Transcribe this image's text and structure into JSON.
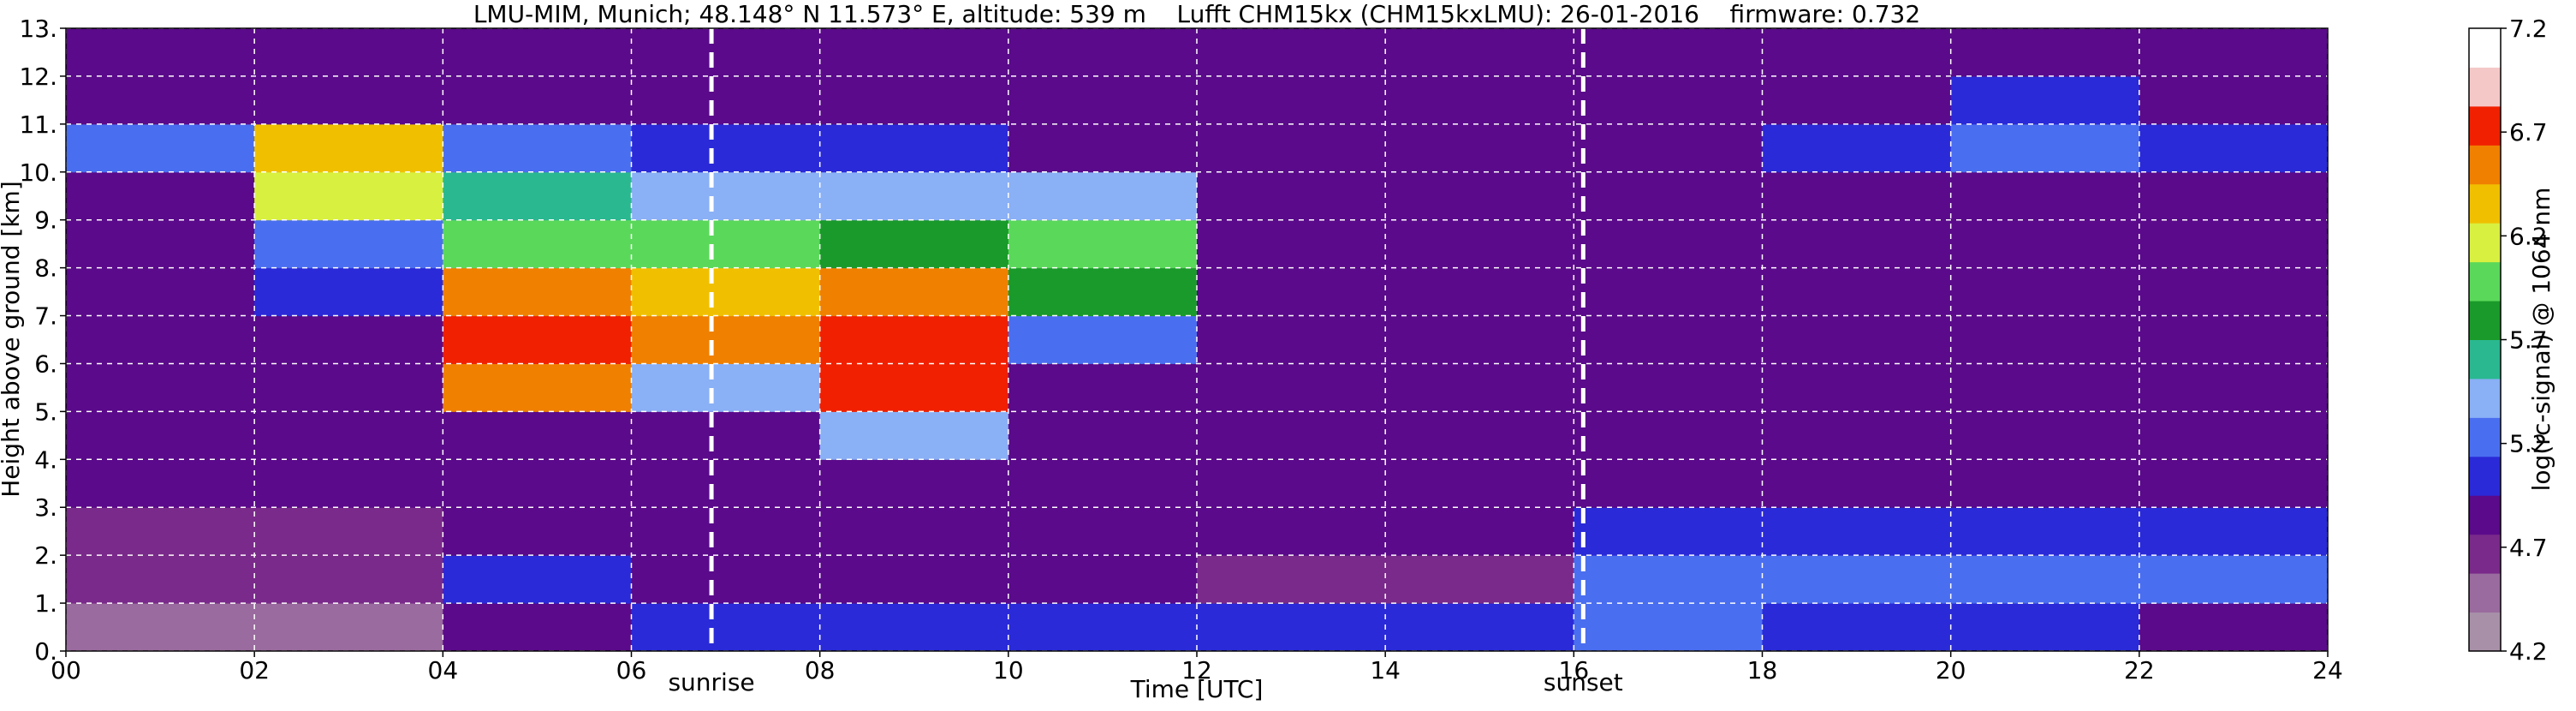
{
  "chart_data": {
    "type": "heatmap",
    "title": "LMU-MIM, Munich; 48.148° N 11.573° E, altitude: 539 m    Lufft CHM15kx (CHM15kxLMU): 26-01-2016    firmware: 0.732",
    "x_label": "Time [UTC]",
    "y_label": "Height above ground [km]",
    "colorbar_label": "log(rc-signal) @ 1064 nm",
    "x_bins": [
      0,
      2,
      4,
      6,
      8,
      10,
      12,
      14,
      16,
      18,
      20,
      22,
      24
    ],
    "y_bins": [
      0,
      1,
      2,
      3,
      4,
      5,
      6,
      7,
      8,
      9,
      10,
      11,
      12,
      13
    ],
    "z": [
      [
        4.5,
        4.5,
        4.9,
        5.0,
        5.1,
        5.1,
        5.0,
        5.0,
        5.2,
        5.1,
        5.0,
        4.9
      ],
      [
        4.6,
        4.6,
        5.0,
        4.8,
        4.8,
        4.8,
        4.7,
        4.7,
        5.3,
        5.3,
        5.2,
        5.2
      ],
      [
        4.6,
        4.7,
        4.8,
        4.8,
        4.8,
        4.8,
        4.8,
        4.8,
        5.0,
        5.0,
        5.0,
        5.0
      ],
      [
        4.8,
        4.8,
        4.8,
        4.8,
        4.8,
        4.8,
        4.8,
        4.8,
        4.8,
        4.8,
        4.8,
        4.8
      ],
      [
        4.9,
        4.9,
        4.9,
        4.9,
        5.5,
        4.9,
        4.9,
        4.9,
        4.9,
        4.9,
        4.9,
        4.9
      ],
      [
        4.9,
        4.9,
        6.5,
        5.5,
        6.8,
        4.9,
        4.9,
        4.9,
        4.9,
        4.9,
        4.9,
        4.9
      ],
      [
        4.9,
        4.9,
        6.8,
        6.5,
        6.8,
        5.2,
        4.9,
        4.9,
        4.9,
        4.9,
        4.9,
        4.9
      ],
      [
        4.9,
        5.0,
        6.5,
        6.3,
        6.5,
        5.8,
        4.9,
        4.9,
        4.9,
        4.9,
        4.9,
        4.9
      ],
      [
        4.9,
        5.3,
        6.0,
        6.0,
        5.8,
        6.0,
        4.9,
        4.9,
        4.9,
        4.9,
        4.9,
        4.9
      ],
      [
        4.9,
        6.2,
        5.6,
        5.5,
        5.5,
        5.5,
        4.9,
        4.9,
        4.9,
        4.9,
        4.9,
        4.9
      ],
      [
        5.2,
        6.3,
        5.2,
        5.0,
        5.0,
        4.9,
        4.9,
        4.9,
        4.9,
        5.1,
        5.3,
        5.0
      ],
      [
        4.9,
        4.9,
        4.9,
        4.9,
        4.9,
        4.9,
        4.9,
        4.9,
        4.9,
        4.9,
        5.1,
        4.9
      ],
      [
        4.9,
        4.9,
        4.9,
        4.9,
        4.9,
        4.9,
        4.9,
        4.9,
        4.9,
        4.9,
        4.9,
        4.9
      ]
    ],
    "colormap": [
      "#a891a8",
      "#9a6b9e",
      "#7a2a8a",
      "#5a0a8a",
      "#2a2ad8",
      "#4a6ef0",
      "#8ab0f5",
      "#2ab890",
      "#1a9a2a",
      "#5ad85a",
      "#d8f040",
      "#f0c000",
      "#f08000",
      "#f02000",
      "#f5c8c8",
      "#ffffff"
    ],
    "zlim": [
      4.2,
      7.2
    ],
    "zticks": [
      4.2,
      4.7,
      5.2,
      5.7,
      6.2,
      6.7,
      7.2
    ],
    "xlim": [
      0,
      24
    ],
    "xticks": [
      {
        "value": 0,
        "label": "00"
      },
      {
        "value": 2,
        "label": "02"
      },
      {
        "value": 4,
        "label": "04"
      },
      {
        "value": 6,
        "label": "06"
      },
      {
        "value": 8,
        "label": "08"
      },
      {
        "value": 10,
        "label": "10"
      },
      {
        "value": 12,
        "label": "12"
      },
      {
        "value": 14,
        "label": "14"
      },
      {
        "value": 16,
        "label": "16"
      },
      {
        "value": 18,
        "label": "18"
      },
      {
        "value": 20,
        "label": "20"
      },
      {
        "value": 22,
        "label": "22"
      },
      {
        "value": 24,
        "label": "24"
      }
    ],
    "ylim": [
      0,
      13
    ],
    "yticks": [
      {
        "value": 0,
        "label": "0."
      },
      {
        "value": 1,
        "label": "1."
      },
      {
        "value": 2,
        "label": "2."
      },
      {
        "value": 3,
        "label": "3."
      },
      {
        "value": 4,
        "label": "4."
      },
      {
        "value": 5,
        "label": "5."
      },
      {
        "value": 6,
        "label": "6."
      },
      {
        "value": 7,
        "label": "7."
      },
      {
        "value": 8,
        "label": "8."
      },
      {
        "value": 9,
        "label": "9."
      },
      {
        "value": 10,
        "label": "10."
      },
      {
        "value": 11,
        "label": "11."
      },
      {
        "value": 12,
        "label": "12."
      },
      {
        "value": 13,
        "label": "13."
      }
    ],
    "grid": true,
    "annotations": [
      {
        "text": "sunrise",
        "x": 6.85
      },
      {
        "text": "sunset",
        "x": 16.1
      }
    ]
  }
}
